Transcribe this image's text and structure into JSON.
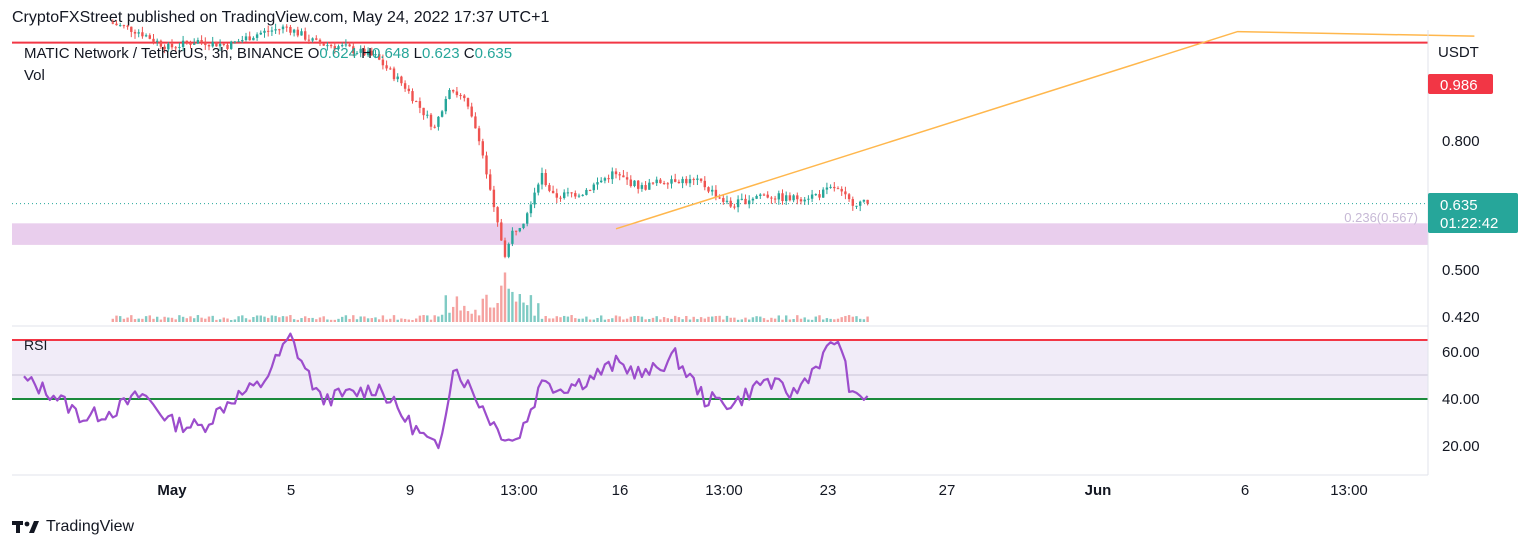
{
  "header": {
    "title": "CryptoFXStreet published on TradingView.com, May 24, 2022 17:37 UTC+1"
  },
  "legend": {
    "symbol": "MATIC Network / TetherUS, 3h, BINANCE",
    "o_label": "O",
    "o_value": "0.624",
    "h_label": "H",
    "h_value": "0.648",
    "l_label": "L",
    "l_value": "0.623",
    "c_label": "C",
    "c_value": "0.635"
  },
  "vol_label": "Vol",
  "rsi_label": "RSI",
  "logo": {
    "text": "TradingView"
  },
  "colors": {
    "up": "#26a69a",
    "down": "#ef5350",
    "resistance": "#f23645",
    "support_zone": "#e1bee7",
    "trendline": "#ffb74d",
    "rsi_line": "#9c4dcc",
    "rsi_band": "#ede7f6",
    "rsi_upper": "#f23645",
    "rsi_lower": "#1b8a3c"
  },
  "chart_data": {
    "type": "candlestick",
    "price_axis": {
      "unit_label": "USDT",
      "ticks": [
        "0.800",
        "0.500",
        "0.420"
      ],
      "range": [
        0.39,
        1.02
      ],
      "resistance_level": {
        "value": 0.986,
        "label": "0.986"
      },
      "current_price": {
        "value": 0.635,
        "label": "0.635",
        "countdown": "01:22:42"
      },
      "support_zone": {
        "from": 0.545,
        "to": 0.592,
        "label": "0.236(0.567)"
      }
    },
    "x_axis": {
      "ticks": [
        "May",
        "5",
        "9",
        "13:00",
        "16",
        "13:00",
        "23",
        "27",
        "Jun",
        "6",
        "13:00"
      ]
    },
    "trendline": {
      "from": {
        "x": "May 16",
        "y": 0.58
      },
      "to": {
        "x": "Jun 6",
        "y": 1.01
      },
      "then_to": {
        "x": "Jun 14",
        "y": 1.0
      }
    },
    "price_anchors": [
      [
        "Apr 29",
        1.03
      ],
      [
        "Apr 30",
        1.01
      ],
      [
        "May 1",
        0.975
      ],
      [
        "May 2",
        0.99
      ],
      [
        "May 3",
        0.98
      ],
      [
        "May 4",
        1.005
      ],
      [
        "May 5",
        1.02
      ],
      [
        "May 6",
        0.985
      ],
      [
        "May 7",
        0.975
      ],
      [
        "May 8",
        0.955
      ],
      [
        "May 9",
        0.89
      ],
      [
        "May 10",
        0.8
      ],
      [
        "May 10.5",
        0.89
      ],
      [
        "May 11",
        0.86
      ],
      [
        "May 11.5",
        0.78
      ],
      [
        "May 12",
        0.62
      ],
      [
        "May 12.4",
        0.52
      ],
      [
        "May 12.6",
        0.57
      ],
      [
        "May 13",
        0.6
      ],
      [
        "May 13.6",
        0.7
      ],
      [
        "May 14",
        0.65
      ],
      [
        "May 15",
        0.66
      ],
      [
        "May 16",
        0.7
      ],
      [
        "May 17",
        0.67
      ],
      [
        "May 18",
        0.69
      ],
      [
        "May 19",
        0.68
      ],
      [
        "May 20",
        0.63
      ],
      [
        "May 21",
        0.655
      ],
      [
        "May 22",
        0.645
      ],
      [
        "May 23",
        0.655
      ],
      [
        "May 23.5",
        0.67
      ],
      [
        "May 24",
        0.64
      ],
      [
        "May 24.6",
        0.635
      ]
    ],
    "rsi": {
      "axis_ticks": [
        "60.00",
        "40.00",
        "20.00"
      ],
      "range": [
        10,
        70
      ],
      "upper": 67,
      "middle": 50,
      "lower": 40,
      "anchors": [
        [
          "Apr 26",
          48
        ],
        [
          "Apr 27",
          42
        ],
        [
          "Apr 28",
          32
        ],
        [
          "Apr 29",
          35
        ],
        [
          "Apr 30",
          42
        ],
        [
          "May 1",
          30
        ],
        [
          "May 2",
          28
        ],
        [
          "May 3",
          40
        ],
        [
          "May 4",
          46
        ],
        [
          "May 5",
          66
        ],
        [
          "May 6",
          40
        ],
        [
          "May 7",
          42
        ],
        [
          "May 8",
          45
        ],
        [
          "May 9",
          30
        ],
        [
          "May 10",
          18
        ],
        [
          "May 10.5",
          54
        ],
        [
          "May 11",
          46
        ],
        [
          "May 12",
          27
        ],
        [
          "May 12.6",
          22
        ],
        [
          "May 13",
          32
        ],
        [
          "May 13.6",
          50
        ],
        [
          "May 14",
          44
        ],
        [
          "May 15",
          48
        ],
        [
          "May 16",
          55
        ],
        [
          "May 17",
          50
        ],
        [
          "May 18",
          58
        ],
        [
          "May 19",
          40
        ],
        [
          "May 20",
          38
        ],
        [
          "May 21",
          48
        ],
        [
          "May 22",
          42
        ],
        [
          "May 23",
          58
        ],
        [
          "May 23.5",
          66
        ],
        [
          "May 24",
          40
        ],
        [
          "May 24.6",
          42
        ]
      ]
    }
  }
}
